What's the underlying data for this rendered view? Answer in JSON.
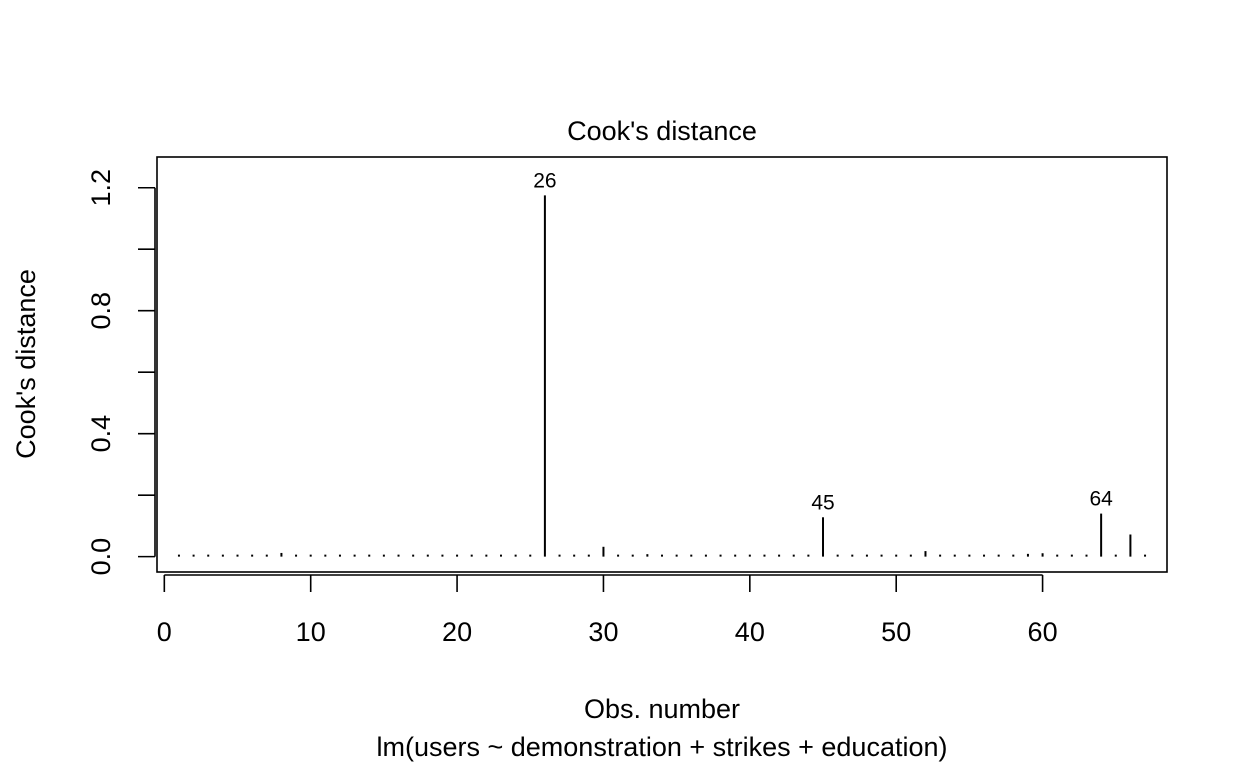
{
  "chart_data": {
    "type": "bar",
    "title": "Cook's distance",
    "xlabel": "Obs. number",
    "sublabel": "lm(users ~ demonstration + strikes + education)",
    "ylabel": "Cook's distance",
    "xlim": [
      -0.5,
      68.5
    ],
    "ylim": [
      -0.05,
      1.3
    ],
    "x_ticks": [
      0,
      10,
      20,
      30,
      40,
      50,
      60
    ],
    "y_ticks": [
      0.0,
      0.4,
      0.8,
      1.2
    ],
    "y_minor_ticks": [
      0.2,
      0.6,
      1.0
    ],
    "x": [
      1,
      2,
      3,
      4,
      5,
      6,
      7,
      8,
      9,
      10,
      11,
      12,
      13,
      14,
      15,
      16,
      17,
      18,
      19,
      20,
      21,
      22,
      23,
      24,
      25,
      26,
      27,
      28,
      29,
      30,
      31,
      32,
      33,
      34,
      35,
      36,
      37,
      38,
      39,
      40,
      41,
      42,
      43,
      44,
      45,
      46,
      47,
      48,
      49,
      50,
      51,
      52,
      53,
      54,
      55,
      56,
      57,
      58,
      59,
      60,
      61,
      62,
      63,
      64,
      65,
      66,
      67
    ],
    "values": [
      0.002,
      0.001,
      0.001,
      0.001,
      0.001,
      0.006,
      0.001,
      0.012,
      0.001,
      0.002,
      0.006,
      0.001,
      0.002,
      0.001,
      0.001,
      0.001,
      0.001,
      0.002,
      0.001,
      0.002,
      0.004,
      0.001,
      0.001,
      0.001,
      0.001,
      1.175,
      0.001,
      0.001,
      0.001,
      0.032,
      0.001,
      0.001,
      0.008,
      0.001,
      0.005,
      0.006,
      0.001,
      0.001,
      0.001,
      0.003,
      0.001,
      0.001,
      0.002,
      0.001,
      0.128,
      0.001,
      0.001,
      0.001,
      0.001,
      0.001,
      0.001,
      0.018,
      0.001,
      0.001,
      0.001,
      0.001,
      0.001,
      0.006,
      0.009,
      0.011,
      0.001,
      0.001,
      0.002,
      0.14,
      0.002,
      0.072,
      0.001
    ],
    "labeled_points": [
      {
        "x": 26,
        "label": "26"
      },
      {
        "x": 45,
        "label": "45"
      },
      {
        "x": 64,
        "label": "64"
      }
    ]
  }
}
